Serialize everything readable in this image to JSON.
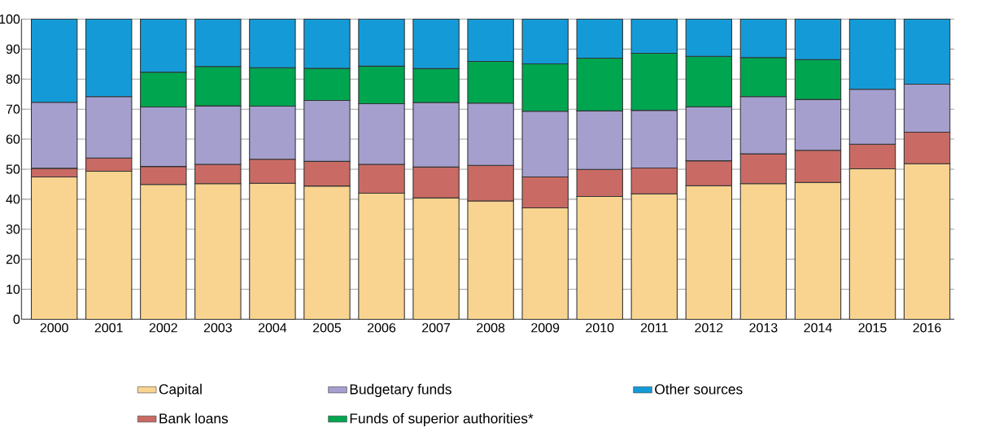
{
  "chart_data": {
    "type": "bar",
    "stacked": true,
    "grid": "y",
    "legend": "bottom",
    "categories": [
      "2000",
      "2001",
      "2002",
      "2003",
      "2004",
      "2005",
      "2006",
      "2007",
      "2008",
      "2009",
      "2010",
      "2011",
      "2012",
      "2013",
      "2014",
      "2015",
      "2016"
    ],
    "ylim": [
      0,
      100
    ],
    "yticks": [
      0,
      10,
      20,
      30,
      40,
      50,
      60,
      70,
      80,
      90,
      100
    ],
    "series": [
      {
        "name": "Capital",
        "color": "#f8d490",
        "values": [
          47.4,
          49.3,
          44.9,
          45.2,
          45.3,
          44.4,
          42.0,
          40.4,
          39.4,
          37.1,
          40.9,
          41.8,
          44.5,
          45.2,
          45.6,
          50.1,
          51.8
        ]
      },
      {
        "name": "Bank loans",
        "color": "#c96b64",
        "values": [
          2.9,
          4.4,
          6.0,
          6.4,
          8.0,
          8.2,
          9.6,
          10.3,
          11.9,
          10.3,
          9.0,
          8.6,
          8.3,
          9.9,
          10.7,
          8.2,
          10.5
        ]
      },
      {
        "name": "Budgetary funds",
        "color": "#a59fce",
        "values": [
          22.0,
          20.5,
          19.8,
          19.5,
          17.7,
          20.3,
          20.2,
          21.5,
          20.7,
          21.9,
          19.5,
          19.2,
          18.0,
          19.1,
          16.9,
          18.3,
          16.0
        ]
      },
      {
        "name": "Funds of superior authorities*",
        "color": "#00a550",
        "values": [
          null,
          null,
          11.6,
          13.1,
          12.8,
          10.7,
          12.5,
          11.3,
          13.9,
          15.8,
          17.6,
          19.0,
          16.8,
          13.0,
          13.3,
          null,
          null
        ]
      },
      {
        "name": "Other sources",
        "color": "#149bd7",
        "values": [
          27.7,
          25.8,
          17.7,
          15.8,
          16.2,
          16.4,
          15.7,
          16.5,
          14.1,
          14.9,
          13.0,
          11.4,
          12.4,
          12.8,
          13.5,
          23.4,
          21.7
        ]
      }
    ]
  }
}
